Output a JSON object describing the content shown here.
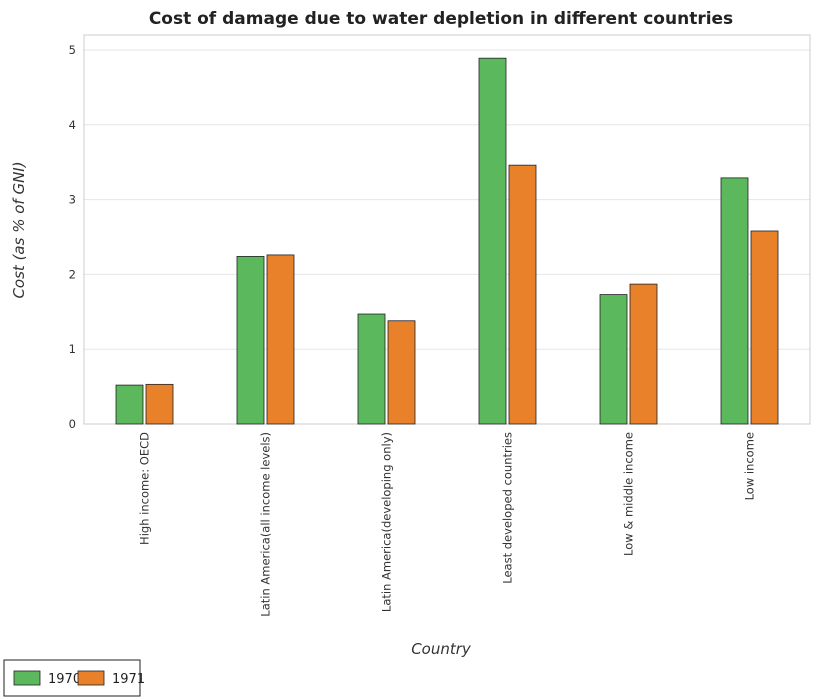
{
  "chart_data": {
    "type": "bar",
    "title": "Cost of damage due to water depletion in different countries",
    "xlabel": "Country",
    "ylabel": "Cost (as % of GNI)",
    "categories": [
      "High income: OECD",
      "Latin America(all income levels)",
      "Latin America(developing only)",
      "Least developed countries",
      "Low & middle income",
      "Low income"
    ],
    "series": [
      {
        "name": "1970",
        "color": "#5cb85c",
        "values": [
          0.52,
          2.24,
          1.47,
          4.89,
          1.73,
          3.29
        ]
      },
      {
        "name": "1971",
        "color": "#e8812a",
        "values": [
          0.53,
          2.26,
          1.38,
          3.46,
          1.87,
          2.58
        ]
      }
    ],
    "ylim": [
      0,
      5.2
    ],
    "yticks": [
      0,
      1,
      2,
      3,
      4,
      5
    ],
    "grid": true,
    "legend_position": "bottom-left"
  }
}
